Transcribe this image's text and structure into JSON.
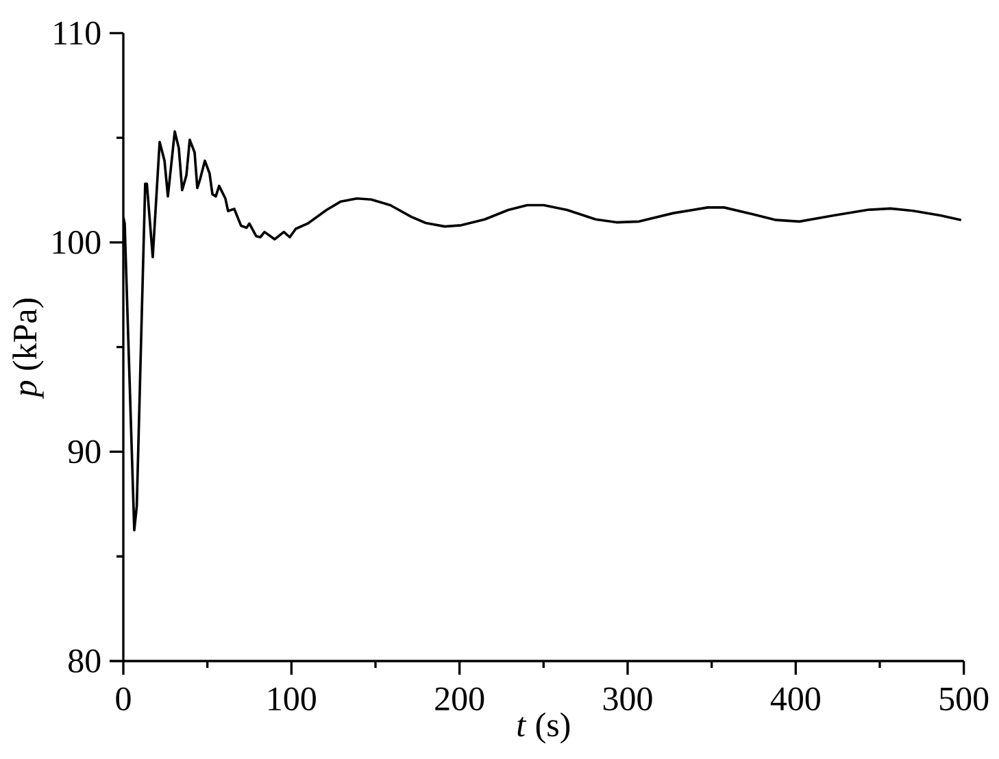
{
  "chart_data": {
    "type": "line",
    "xlabel": "*t* (s)",
    "ylabel": "*p* (kPa)",
    "xlim": [
      0,
      500
    ],
    "ylim": [
      80,
      110
    ],
    "xticks": [
      0,
      100,
      200,
      300,
      400,
      500
    ],
    "yticks": [
      80,
      90,
      100,
      110
    ],
    "grid": false,
    "marker": "none",
    "line_style": "solid",
    "series": [
      {
        "color": "#000000",
        "x": [
          0,
          0.8,
          6.5,
          8,
          13,
          14,
          17.5,
          21.6,
          24.5,
          26.5,
          30.6,
          33,
          35,
          37.5,
          39.5,
          42.4,
          44,
          45.6,
          48.5,
          51.3,
          53,
          55,
          57,
          60.7,
          62.3,
          66,
          70,
          73.3,
          75,
          79,
          81.5,
          84,
          90,
          95.5,
          99,
          102.6,
          109.6,
          120.9,
          129.2,
          139,
          147.5,
          158.8,
          171.4,
          179.9,
          191.2,
          201,
          215,
          229,
          240.3,
          250.1,
          264,
          281,
          293.4,
          306.8,
          327.2,
          347.6,
          357.4,
          374.9,
          388.3,
          402.2,
          422.6,
          443,
          456.4,
          469.8,
          486.1,
          498.4
        ],
        "values": [
          101.2,
          100.9,
          86.25,
          87.4,
          102.8,
          102.8,
          99.3,
          104.8,
          103.9,
          102.2,
          105.3,
          104.5,
          102.5,
          103.2,
          104.9,
          104.3,
          102.6,
          103.0,
          103.9,
          103.3,
          102.3,
          102.2,
          102.7,
          102.1,
          101.5,
          101.6,
          100.8,
          100.7,
          100.9,
          100.3,
          100.25,
          100.5,
          100.15,
          100.5,
          100.25,
          100.65,
          100.9,
          101.55,
          101.95,
          102.1,
          102.05,
          101.78,
          101.22,
          100.93,
          100.76,
          100.82,
          101.1,
          101.55,
          101.78,
          101.78,
          101.55,
          101.1,
          100.96,
          101.0,
          101.4,
          101.67,
          101.67,
          101.34,
          101.07,
          101.0,
          101.29,
          101.56,
          101.62,
          101.51,
          101.29,
          101.07
        ]
      }
    ]
  }
}
